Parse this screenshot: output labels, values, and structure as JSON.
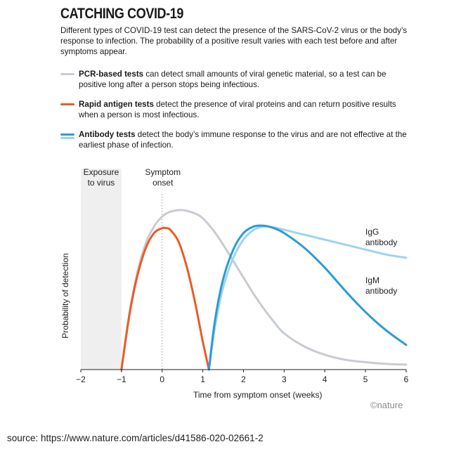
{
  "title": "CATCHING COVID-19",
  "subtitle": "Different types of COVID-19 test can detect the presence of the SARS-CoV-2 virus or the body’s response to infection. The probability of a positive result varies with each test before and after symptoms appear.",
  "legend": [
    {
      "bold": "PCR-based tests",
      "text": " can detect small amounts of viral genetic material, so a test can be positive long after a person stops being infectious.",
      "color": "#c8cbd2"
    },
    {
      "bold": "Rapid antigen tests",
      "text": " detect the presence of viral proteins and can return positive results when a person is most infectious.",
      "color": "#ea5b25"
    },
    {
      "bold": "Antibody tests",
      "text": " detect the body’s immune response to the virus and are not effective at the earliest phase of infection.",
      "color": "#2b9bd6",
      "color2": "#9ed3f1"
    }
  ],
  "source": "source: https://www.nature.com/articles/d41586-020-02661-2",
  "chart_data": {
    "type": "line",
    "xlabel": "Time from symptom onset (weeks)",
    "ylabel": "Probability of detection",
    "xlim": [
      -2,
      6
    ],
    "ylim": [
      0,
      1
    ],
    "xticks": [
      -2,
      -1,
      0,
      1,
      2,
      3,
      4,
      5,
      6
    ],
    "grid": false,
    "annotations": {
      "exposure": "Exposure to virus",
      "symptom": "Symptom onset",
      "igg": "IgG antibody",
      "igm": "IgM antibody",
      "credit": "©nature"
    },
    "exposure_region": [
      -2,
      -1
    ],
    "symptom_line_x": 0,
    "series": [
      {
        "key": "pcr",
        "color": "#c8cbd2",
        "x": [
          -1,
          -0.8,
          -0.6,
          -0.4,
          -0.2,
          0,
          0.2,
          0.5,
          0.8,
          1,
          1.25,
          1.5,
          1.75,
          2,
          2.25,
          2.5,
          2.75,
          3,
          3.5,
          4,
          4.5,
          5,
          5.5,
          6
        ],
        "y": [
          0,
          0.35,
          0.6,
          0.77,
          0.87,
          0.93,
          0.96,
          0.97,
          0.95,
          0.92,
          0.85,
          0.76,
          0.66,
          0.56,
          0.46,
          0.37,
          0.29,
          0.22,
          0.14,
          0.09,
          0.06,
          0.045,
          0.035,
          0.03
        ]
      },
      {
        "key": "antigen",
        "color": "#ea5b25",
        "x": [
          -1,
          -0.8,
          -0.6,
          -0.4,
          -0.2,
          0,
          0.1,
          0.2,
          0.4,
          0.6,
          0.8,
          1,
          1.15
        ],
        "y": [
          0,
          0.34,
          0.58,
          0.74,
          0.83,
          0.86,
          0.86,
          0.85,
          0.78,
          0.63,
          0.42,
          0.17,
          0
        ]
      },
      {
        "key": "igg",
        "color": "#9ed3f1",
        "x": [
          1.15,
          1.3,
          1.5,
          1.75,
          2,
          2.25,
          2.5,
          2.75,
          3,
          3.5,
          4,
          4.5,
          5,
          5.5,
          6
        ],
        "y": [
          0,
          0.26,
          0.5,
          0.68,
          0.79,
          0.85,
          0.87,
          0.865,
          0.85,
          0.82,
          0.79,
          0.76,
          0.73,
          0.7,
          0.68
        ]
      },
      {
        "key": "igm",
        "color": "#2b9bd6",
        "x": [
          1.15,
          1.3,
          1.5,
          1.75,
          2,
          2.25,
          2.5,
          2.75,
          3,
          3.5,
          4,
          4.5,
          5,
          5.5,
          6
        ],
        "y": [
          0,
          0.3,
          0.55,
          0.73,
          0.83,
          0.87,
          0.875,
          0.86,
          0.83,
          0.74,
          0.62,
          0.48,
          0.35,
          0.24,
          0.15
        ]
      }
    ]
  }
}
